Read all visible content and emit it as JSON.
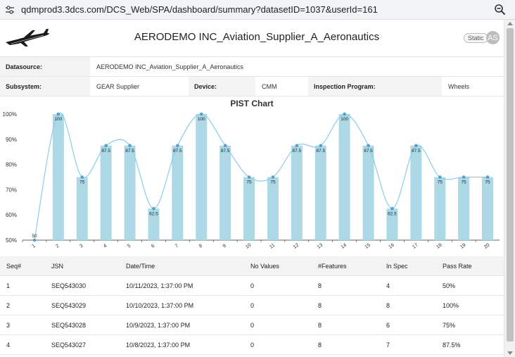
{
  "browser": {
    "url": "qdmprod3.3dcs.com/DCS_Web/SPA/dashboard/summary?datasetID=1037&userId=161"
  },
  "header": {
    "title": "AERODEMO INC_Aviation_Supplier_A_Aeronautics",
    "badge": "Static",
    "avatar_initials": "AS"
  },
  "info": {
    "datasource_label": "Datasource:",
    "datasource_value": "AERODEMO INC_Aviation_Supplier_A_Aeronautics",
    "subsystem_label": "Subsystem:",
    "subsystem_value": "GEAR Supplier",
    "device_label": "Device:",
    "device_value": "CMM",
    "program_label": "Inspection Program:",
    "program_value": "Wheels"
  },
  "chart_data": {
    "type": "bar",
    "title": "PIST Chart",
    "categories": [
      "1",
      "2",
      "3",
      "4",
      "5",
      "6",
      "7",
      "8",
      "9",
      "10",
      "11",
      "12",
      "13",
      "14",
      "15",
      "16",
      "17",
      "18",
      "19",
      "20"
    ],
    "values": [
      50,
      100,
      75,
      87.5,
      87.5,
      62.5,
      87.5,
      100,
      87.5,
      75,
      75,
      87.5,
      87.5,
      100,
      87.5,
      62.5,
      87.5,
      75,
      75,
      75
    ],
    "ylim": [
      50,
      100
    ],
    "yticks": [
      "50%",
      "60%",
      "70%",
      "80%",
      "90%",
      "100%"
    ],
    "overlay": "smooth-line",
    "colors": {
      "bar": "#add8e6",
      "line": "#87ceeb",
      "point": "#4aa3d8"
    },
    "grid": false
  },
  "table": {
    "headers": [
      "Seq#",
      "JSN",
      "Date/Time",
      "No Values",
      "#Features",
      "In Spec",
      "Pass Rate"
    ],
    "rows": [
      [
        "1",
        "SEQ543030",
        "10/11/2023, 1:37:00 PM",
        "0",
        "8",
        "4",
        "50%"
      ],
      [
        "2",
        "SEQ543029",
        "10/10/2023, 1:37:00 PM",
        "0",
        "8",
        "8",
        "100%"
      ],
      [
        "3",
        "SEQ543028",
        "10/9/2023, 1:37:00 PM",
        "0",
        "8",
        "6",
        "75%"
      ],
      [
        "4",
        "SEQ543027",
        "10/8/2023, 1:37:00 PM",
        "0",
        "8",
        "7",
        "87.5%"
      ]
    ]
  }
}
